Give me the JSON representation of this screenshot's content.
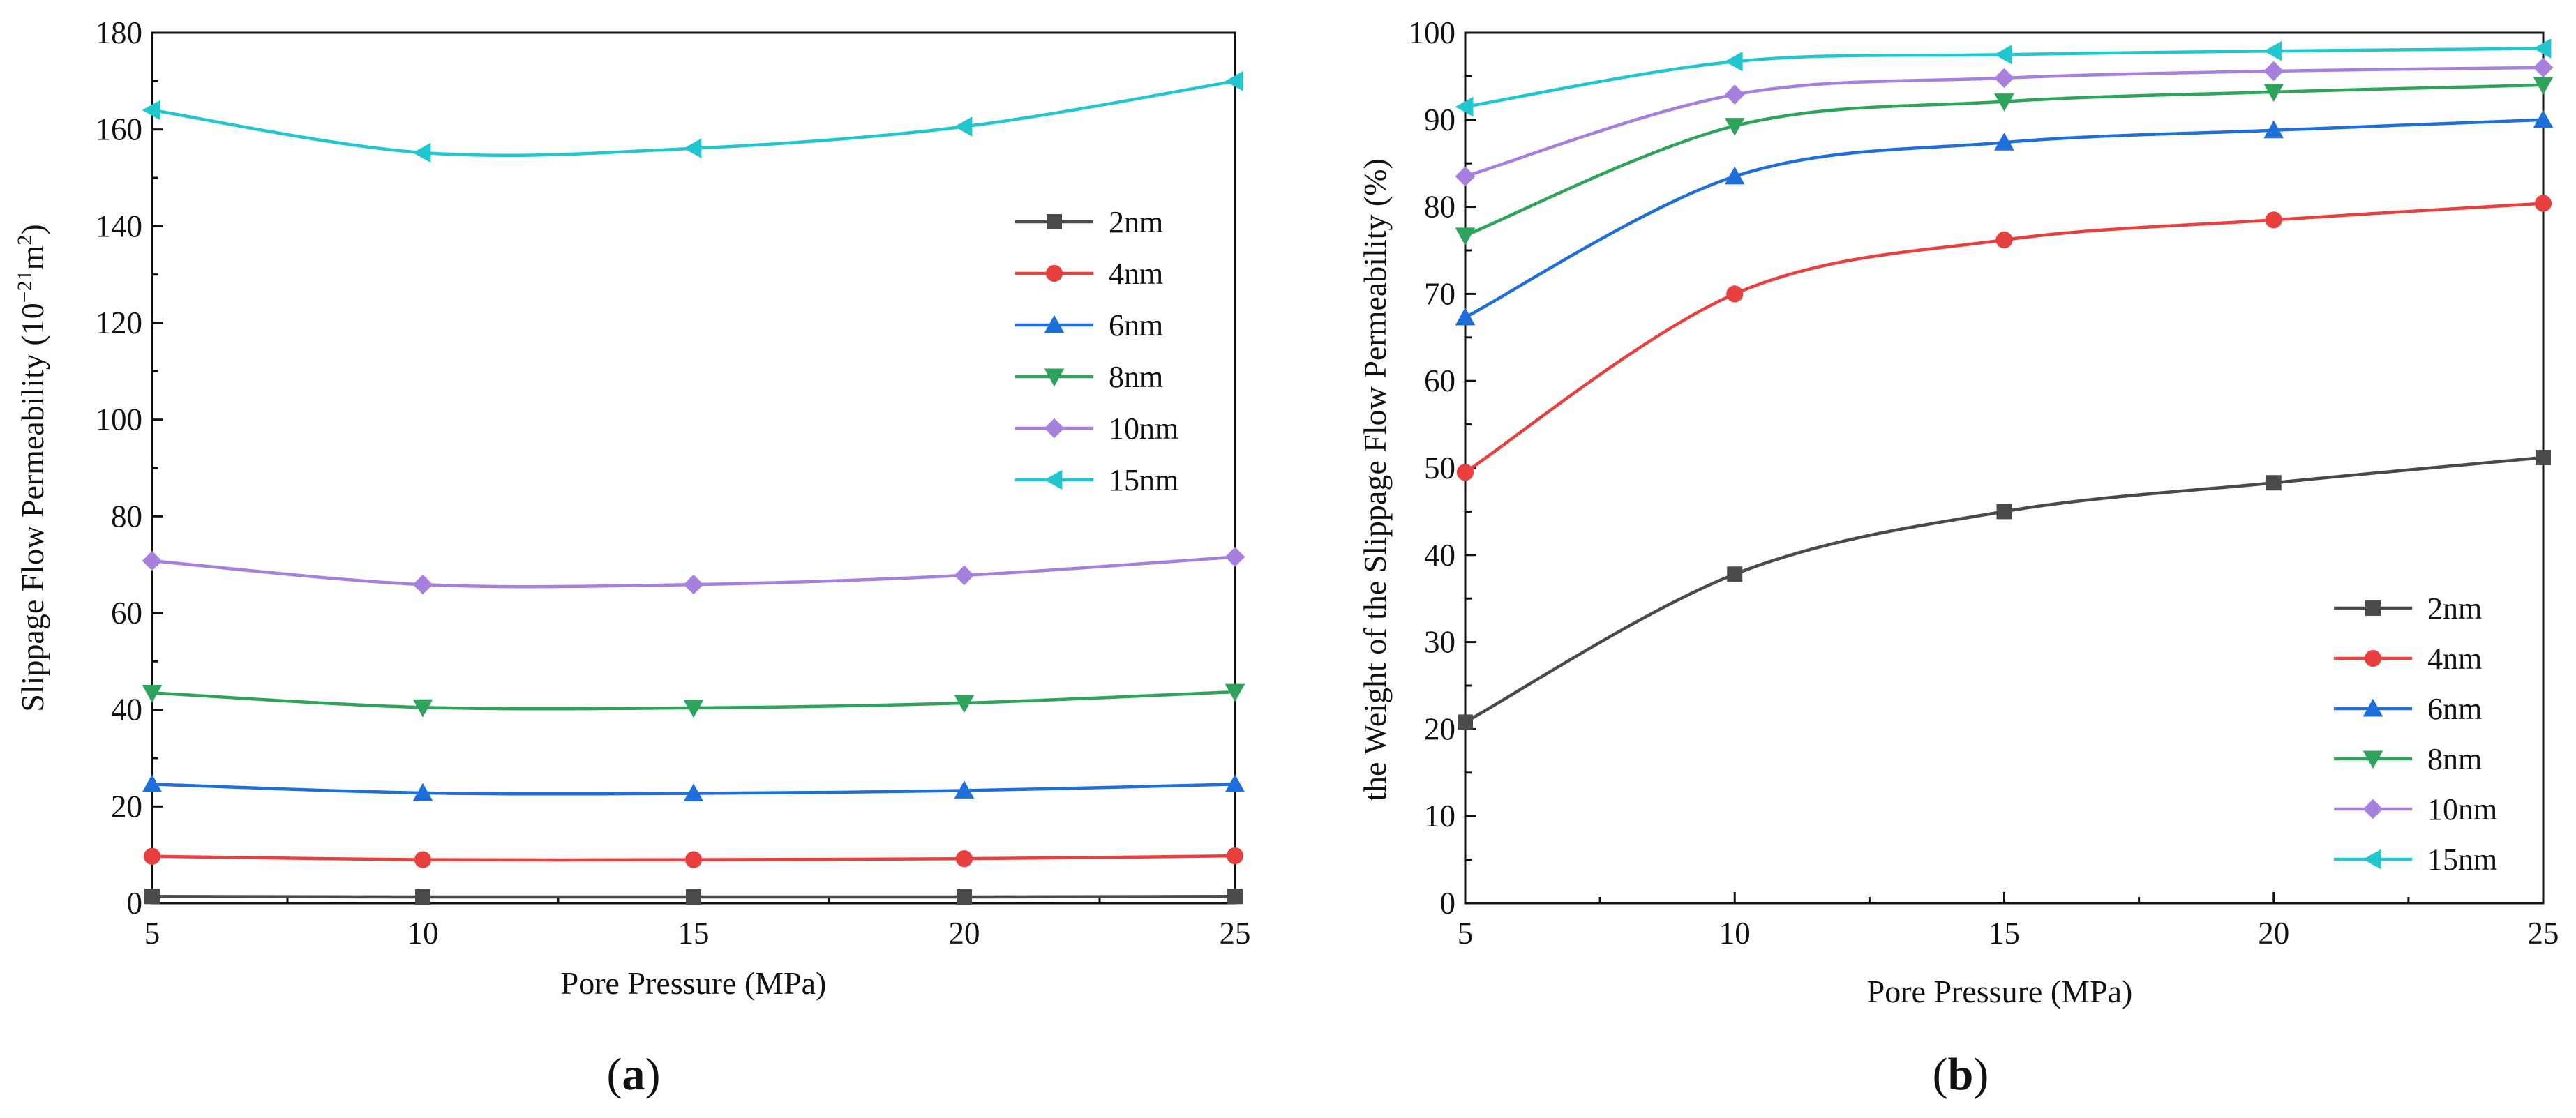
{
  "chart_data": [
    {
      "type": "line",
      "panel_label": "a",
      "title": "",
      "xlabel": "Pore Pressure (MPa)",
      "ylabel_prefix": "Slippage Flow Permeability (10",
      "ylabel_exp": "−21",
      "ylabel_unit": "m",
      "ylabel_unit_exp": "2",
      "ylabel_suffix": ")",
      "xlim": [
        5,
        25
      ],
      "ylim": [
        0,
        180
      ],
      "xticks": [
        5,
        10,
        15,
        20,
        25
      ],
      "yticks": [
        0,
        20,
        40,
        60,
        80,
        100,
        120,
        140,
        160,
        180
      ],
      "grid": false,
      "legend_position": "upper-right",
      "x": [
        5,
        10,
        15,
        20,
        25
      ],
      "series": [
        {
          "name": "2nm",
          "marker": "square",
          "color": "#4a4a4a",
          "values": [
            1.4,
            1.3,
            1.3,
            1.3,
            1.4
          ]
        },
        {
          "name": "4nm",
          "marker": "circle",
          "color": "#e8403e",
          "values": [
            9.7,
            9.0,
            9.0,
            9.2,
            9.8
          ]
        },
        {
          "name": "6nm",
          "marker": "triangle-up",
          "color": "#1e6fd9",
          "values": [
            24.6,
            22.8,
            22.7,
            23.3,
            24.6
          ]
        },
        {
          "name": "8nm",
          "marker": "triangle-down",
          "color": "#2ea35c",
          "values": [
            43.5,
            40.5,
            40.4,
            41.4,
            43.7
          ]
        },
        {
          "name": "10nm",
          "marker": "diamond",
          "color": "#a77fdd",
          "values": [
            70.8,
            65.9,
            65.9,
            67.8,
            71.6
          ]
        },
        {
          "name": "15nm",
          "marker": "triangle-left",
          "color": "#21c7cf",
          "values": [
            164.0,
            155.2,
            156.1,
            160.6,
            170.0
          ]
        }
      ]
    },
    {
      "type": "line",
      "panel_label": "b",
      "title": "",
      "xlabel": "Pore Pressure (MPa)",
      "ylabel": "the Weight of the Slippage Flow Permeability (%)",
      "xlim": [
        5,
        25
      ],
      "ylim": [
        0,
        100
      ],
      "xticks": [
        5,
        10,
        15,
        20,
        25
      ],
      "yticks": [
        0,
        10,
        20,
        30,
        40,
        50,
        60,
        70,
        80,
        90,
        100
      ],
      "grid": false,
      "legend_position": "lower-right",
      "x": [
        5,
        10,
        15,
        20,
        25
      ],
      "series": [
        {
          "name": "2nm",
          "marker": "square",
          "color": "#4a4a4a",
          "values": [
            20.8,
            37.8,
            45.0,
            48.3,
            51.2
          ]
        },
        {
          "name": "4nm",
          "marker": "circle",
          "color": "#e8403e",
          "values": [
            49.5,
            70.0,
            76.2,
            78.5,
            80.4
          ]
        },
        {
          "name": "6nm",
          "marker": "triangle-up",
          "color": "#1e6fd9",
          "values": [
            67.3,
            83.5,
            87.4,
            88.8,
            90.0
          ]
        },
        {
          "name": "8nm",
          "marker": "triangle-down",
          "color": "#2ea35c",
          "values": [
            76.7,
            89.3,
            92.1,
            93.2,
            94.0
          ]
        },
        {
          "name": "10nm",
          "marker": "diamond",
          "color": "#a77fdd",
          "values": [
            83.5,
            92.9,
            94.8,
            95.6,
            96.0
          ]
        },
        {
          "name": "15nm",
          "marker": "triangle-left",
          "color": "#21c7cf",
          "values": [
            91.5,
            96.7,
            97.5,
            97.9,
            98.2
          ]
        }
      ]
    }
  ]
}
